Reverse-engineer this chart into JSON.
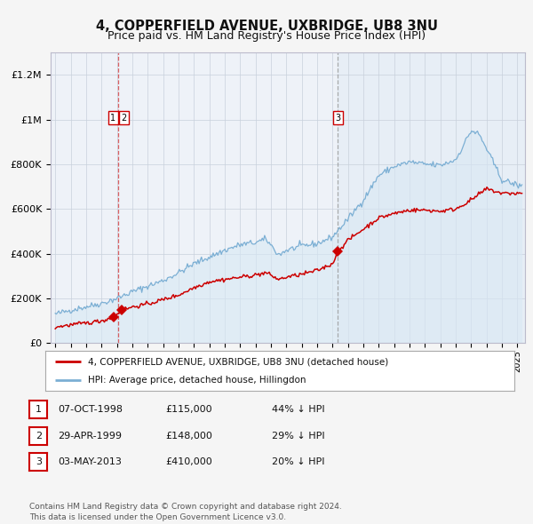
{
  "title": "4, COPPERFIELD AVENUE, UXBRIDGE, UB8 3NU",
  "subtitle": "Price paid vs. HM Land Registry's House Price Index (HPI)",
  "title_fontsize": 10.5,
  "subtitle_fontsize": 9,
  "xlim": [
    1994.7,
    2025.5
  ],
  "ylim": [
    0,
    1300000
  ],
  "yticks": [
    0,
    200000,
    400000,
    600000,
    800000,
    1000000,
    1200000
  ],
  "ytick_labels": [
    "£0",
    "£200K",
    "£400K",
    "£600K",
    "£800K",
    "£1M",
    "£1.2M"
  ],
  "background_color": "#f5f5f5",
  "plot_bg_color": "#eef2f8",
  "hpi_line_color": "#7bafd4",
  "price_line_color": "#cc0000",
  "hpi_fill_color": "#d8e8f4",
  "vline1_color": "#cc0000",
  "vline2_color": "#999999",
  "sale_points": [
    {
      "year": 1998.77,
      "price": 115000
    },
    {
      "year": 1999.33,
      "price": 148000
    },
    {
      "year": 2013.34,
      "price": 410000
    }
  ],
  "vline_years": [
    1999.1,
    2013.34
  ],
  "legend_items": [
    {
      "label": "4, COPPERFIELD AVENUE, UXBRIDGE, UB8 3NU (detached house)",
      "color": "#cc0000"
    },
    {
      "label": "HPI: Average price, detached house, Hillingdon",
      "color": "#7bafd4"
    }
  ],
  "table_rows": [
    {
      "num": "1",
      "date": "07-OCT-1998",
      "price": "£115,000",
      "change": "44% ↓ HPI"
    },
    {
      "num": "2",
      "date": "29-APR-1999",
      "price": "£148,000",
      "change": "29% ↓ HPI"
    },
    {
      "num": "3",
      "date": "03-MAY-2013",
      "price": "£410,000",
      "change": "20% ↓ HPI"
    }
  ],
  "footnote": "Contains HM Land Registry data © Crown copyright and database right 2024.\nThis data is licensed under the Open Government Licence v3.0."
}
